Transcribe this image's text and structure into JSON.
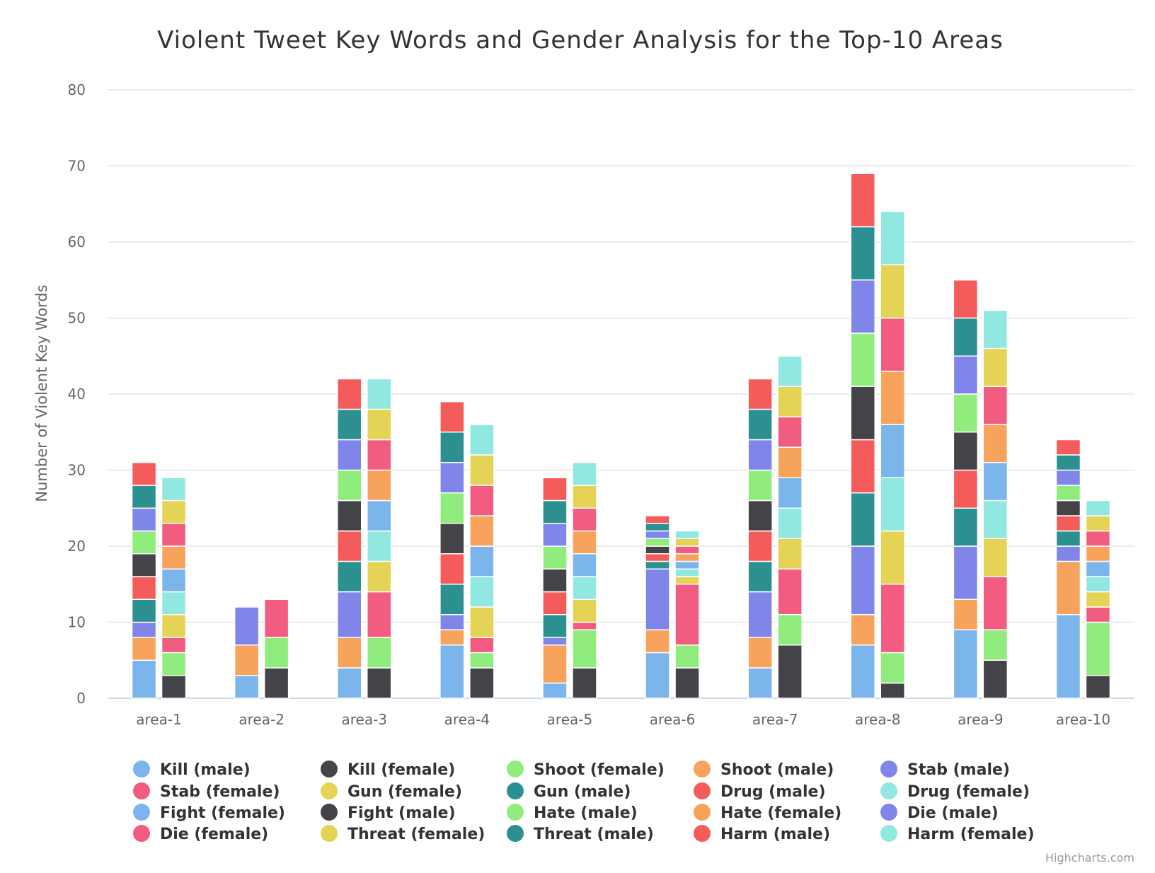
{
  "chart_data": {
    "type": "bar",
    "stacked": true,
    "title": "Violent Tweet Key Words and Gender Analysis for the Top-10 Areas",
    "xlabel": "",
    "ylabel": "Number of Violent Key Words",
    "ylim": [
      0,
      80
    ],
    "yticks": [
      0,
      10,
      20,
      30,
      40,
      50,
      60,
      70,
      80
    ],
    "grid": true,
    "legend_position": "bottom",
    "credit": "Highcharts.com",
    "categories": [
      "area-1",
      "area-2",
      "area-3",
      "area-4",
      "area-5",
      "area-6",
      "area-7",
      "area-8",
      "area-9",
      "area-10"
    ],
    "stacks": [
      "male",
      "female"
    ],
    "series": [
      {
        "name": "Kill (male)",
        "stack": "male",
        "color": "#7cb5ec",
        "values": [
          5,
          3,
          4,
          7,
          2,
          6,
          4,
          7,
          9,
          11
        ]
      },
      {
        "name": "Kill (female)",
        "stack": "female",
        "color": "#434348",
        "values": [
          3,
          4,
          4,
          4,
          4,
          4,
          7,
          2,
          5,
          3
        ]
      },
      {
        "name": "Shoot (female)",
        "stack": "female",
        "color": "#90ed7d",
        "values": [
          3,
          4,
          4,
          2,
          5,
          3,
          4,
          4,
          4,
          7
        ]
      },
      {
        "name": "Shoot (male)",
        "stack": "male",
        "color": "#f7a35c",
        "values": [
          3,
          4,
          4,
          2,
          5,
          3,
          4,
          4,
          4,
          7
        ]
      },
      {
        "name": "Stab (male)",
        "stack": "male",
        "color": "#8085e9",
        "values": [
          2,
          5,
          6,
          2,
          1,
          8,
          6,
          9,
          7,
          2
        ]
      },
      {
        "name": "Stab (female)",
        "stack": "female",
        "color": "#f15c80",
        "values": [
          2,
          5,
          6,
          2,
          1,
          8,
          6,
          9,
          7,
          2
        ]
      },
      {
        "name": "Gun (female)",
        "stack": "female",
        "color": "#e4d354",
        "values": [
          3,
          0,
          4,
          4,
          3,
          1,
          4,
          7,
          5,
          2
        ]
      },
      {
        "name": "Gun (male)",
        "stack": "male",
        "color": "#2b908f",
        "values": [
          3,
          0,
          4,
          4,
          3,
          1,
          4,
          7,
          5,
          2
        ]
      },
      {
        "name": "Drug (male)",
        "stack": "male",
        "color": "#f45b5b",
        "values": [
          3,
          0,
          4,
          4,
          3,
          1,
          4,
          7,
          5,
          2
        ]
      },
      {
        "name": "Drug (female)",
        "stack": "female",
        "color": "#91e8e1",
        "values": [
          3,
          0,
          4,
          4,
          3,
          1,
          4,
          7,
          5,
          2
        ]
      },
      {
        "name": "Fight (female)",
        "stack": "female",
        "color": "#7cb5ec",
        "values": [
          3,
          0,
          4,
          4,
          3,
          1,
          4,
          7,
          5,
          2
        ]
      },
      {
        "name": "Fight (male)",
        "stack": "male",
        "color": "#434348",
        "values": [
          3,
          0,
          4,
          4,
          3,
          1,
          4,
          7,
          5,
          2
        ]
      },
      {
        "name": "Hate (male)",
        "stack": "male",
        "color": "#90ed7d",
        "values": [
          3,
          0,
          4,
          4,
          3,
          1,
          4,
          7,
          5,
          2
        ]
      },
      {
        "name": "Hate (female)",
        "stack": "female",
        "color": "#f7a35c",
        "values": [
          3,
          0,
          4,
          4,
          3,
          1,
          4,
          7,
          5,
          2
        ]
      },
      {
        "name": "Die (male)",
        "stack": "male",
        "color": "#8085e9",
        "values": [
          3,
          0,
          4,
          4,
          3,
          1,
          4,
          7,
          5,
          2
        ]
      },
      {
        "name": "Die (female)",
        "stack": "female",
        "color": "#f15c80",
        "values": [
          3,
          0,
          4,
          4,
          3,
          1,
          4,
          7,
          5,
          2
        ]
      },
      {
        "name": "Threat (female)",
        "stack": "female",
        "color": "#e4d354",
        "values": [
          3,
          0,
          4,
          4,
          3,
          1,
          4,
          7,
          5,
          2
        ]
      },
      {
        "name": "Threat (male)",
        "stack": "male",
        "color": "#2b908f",
        "values": [
          3,
          0,
          4,
          4,
          3,
          1,
          4,
          7,
          5,
          2
        ]
      },
      {
        "name": "Harm (male)",
        "stack": "male",
        "color": "#f45b5b",
        "values": [
          3,
          0,
          4,
          4,
          3,
          1,
          4,
          7,
          5,
          2
        ]
      },
      {
        "name": "Harm (female)",
        "stack": "female",
        "color": "#91e8e1",
        "values": [
          3,
          0,
          4,
          4,
          3,
          1,
          4,
          7,
          5,
          2
        ]
      }
    ]
  }
}
